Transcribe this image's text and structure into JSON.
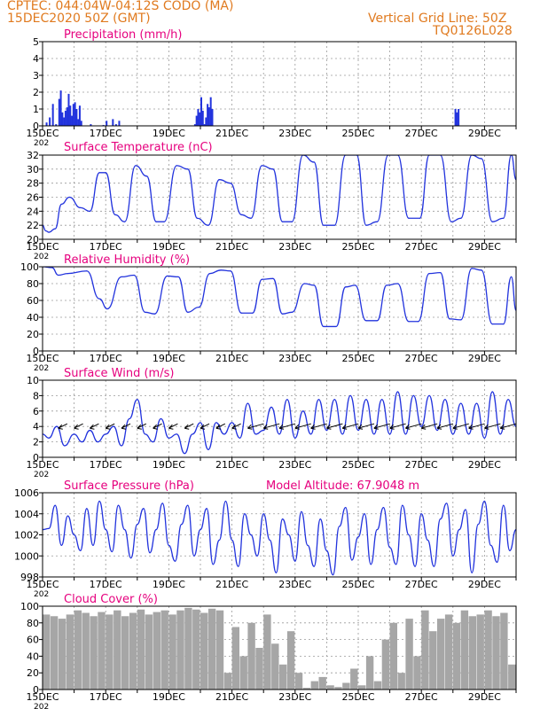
{
  "header": {
    "line1": "CPTEC:   044:04W-04:12S   CODO (MA)",
    "line2": "15DEC2020 50Z (GMT)",
    "right1": "Vertical Grid Line: 50Z",
    "right2": "TQ0126L028"
  },
  "colors": {
    "header": "#e07a1f",
    "title": "#e6007e",
    "series": "#2233dd",
    "cloud": "#a6a6a6",
    "grid": "#9a9a9a"
  },
  "x_axis": {
    "tick_labels": [
      "15DEC",
      "17DEC",
      "19DEC",
      "21DEC",
      "23DEC",
      "25DEC",
      "27DEC",
      "29DEC"
    ],
    "tick_days": [
      15,
      17,
      19,
      21,
      23,
      25,
      27,
      29
    ],
    "year_fragment": "202",
    "xlim": [
      15,
      30
    ]
  },
  "chart_data": [
    {
      "type": "bar",
      "title": "Precipitation (mm/h)",
      "ylim": [
        0,
        5
      ],
      "yticks": [
        "0",
        "1",
        "2",
        "3",
        "4",
        "5"
      ],
      "x": [
        15.1,
        15.2,
        15.3,
        15.4,
        15.5,
        15.55,
        15.6,
        15.65,
        15.7,
        15.75,
        15.8,
        15.85,
        15.9,
        15.95,
        16.0,
        16.05,
        16.1,
        16.15,
        16.2,
        16.5,
        16.9,
        17.0,
        17.2,
        17.3,
        17.4,
        19.8,
        19.85,
        19.9,
        19.95,
        20.0,
        20.05,
        20.1,
        20.15,
        20.2,
        20.25,
        20.3,
        20.35,
        28.05,
        28.1,
        28.15
      ],
      "values": [
        0.2,
        0.5,
        1.3,
        0.1,
        1.6,
        2.1,
        0.8,
        0.5,
        0.9,
        1.1,
        1.9,
        1.2,
        0.6,
        1.3,
        1.4,
        1.0,
        0.4,
        1.2,
        0.3,
        0.1,
        0.05,
        0.3,
        0.4,
        0.1,
        0.3,
        0.1,
        0.6,
        1.0,
        0.8,
        1.7,
        0.9,
        0.1,
        0.5,
        1.3,
        1.1,
        1.7,
        1.0,
        1.0,
        0.8,
        1.0
      ]
    },
    {
      "type": "line",
      "title": "Surface Temperature (nC)",
      "ylim": [
        20,
        32
      ],
      "yticks": [
        "20",
        "22",
        "24",
        "26",
        "28",
        "30",
        "32"
      ],
      "x": [
        15.0,
        15.1,
        15.2,
        15.4,
        15.6,
        15.85,
        16.2,
        16.5,
        16.8,
        17.0,
        17.3,
        17.6,
        17.95,
        18.3,
        18.6,
        18.85,
        19.25,
        19.6,
        19.9,
        20.25,
        20.6,
        20.95,
        21.3,
        21.6,
        21.95,
        22.3,
        22.6,
        22.9,
        23.25,
        23.6,
        23.9,
        24.25,
        24.6,
        24.95,
        25.25,
        25.6,
        25.95,
        26.25,
        26.6,
        26.95,
        27.25,
        27.6,
        27.95,
        28.25,
        28.6,
        28.9,
        29.25,
        29.6,
        29.85,
        30.0
      ],
      "values": [
        22,
        21.2,
        21,
        21.5,
        25,
        26,
        24.5,
        24,
        29.5,
        29.5,
        23.5,
        22.5,
        30.5,
        29,
        22.5,
        22.5,
        30.5,
        30,
        23,
        22,
        28.5,
        28,
        23.5,
        23,
        30.5,
        30,
        22.5,
        22.5,
        32,
        31,
        22,
        22,
        32,
        32,
        22,
        22.5,
        32,
        32,
        23,
        23,
        32,
        32,
        22.5,
        23,
        32,
        31.5,
        22.5,
        23,
        32,
        28.5
      ]
    },
    {
      "type": "line",
      "title": "Relative Humidity (%)",
      "ylim": [
        0,
        100
      ],
      "yticks": [
        "0",
        "20",
        "40",
        "60",
        "80",
        "100"
      ],
      "x": [
        15.0,
        15.3,
        15.5,
        15.8,
        16.4,
        16.8,
        17.05,
        17.5,
        17.9,
        18.25,
        18.55,
        18.95,
        19.3,
        19.6,
        19.95,
        20.3,
        20.65,
        20.95,
        21.3,
        21.65,
        21.95,
        22.3,
        22.6,
        22.9,
        23.3,
        23.6,
        23.9,
        24.3,
        24.6,
        24.9,
        25.25,
        25.6,
        25.9,
        26.25,
        26.6,
        26.9,
        27.25,
        27.6,
        27.9,
        28.25,
        28.6,
        28.9,
        29.25,
        29.6,
        29.85,
        30.0
      ],
      "values": [
        100,
        99,
        90,
        92,
        95,
        62,
        50,
        88,
        90,
        46,
        44,
        89,
        88,
        46,
        52,
        92,
        96,
        95,
        45,
        45,
        85,
        86,
        44,
        46,
        80,
        78,
        29,
        29,
        76,
        78,
        36,
        36,
        78,
        80,
        35,
        35,
        92,
        93,
        38,
        37,
        98,
        96,
        32,
        32,
        88,
        48
      ]
    },
    {
      "type": "line",
      "title": "Surface Wind (m/s)",
      "ylim": [
        0,
        10
      ],
      "yticks": [
        "0",
        "2",
        "4",
        "6",
        "8",
        "10"
      ],
      "x": [
        15.0,
        15.2,
        15.45,
        15.7,
        16.0,
        16.25,
        16.5,
        16.75,
        17.0,
        17.25,
        17.5,
        17.75,
        18.0,
        18.25,
        18.5,
        18.75,
        19.0,
        19.25,
        19.5,
        19.75,
        20.0,
        20.25,
        20.5,
        20.75,
        21.0,
        21.25,
        21.5,
        21.75,
        22.0,
        22.25,
        22.5,
        22.75,
        23.0,
        23.25,
        23.5,
        23.75,
        24.0,
        24.25,
        24.5,
        24.75,
        25.0,
        25.25,
        25.5,
        25.75,
        26.0,
        26.25,
        26.5,
        26.75,
        27.0,
        27.25,
        27.5,
        27.75,
        28.0,
        28.25,
        28.5,
        28.75,
        29.0,
        29.25,
        29.5,
        29.75,
        30.0
      ],
      "values": [
        3,
        2.5,
        4,
        1.5,
        3,
        2,
        3.5,
        2,
        3,
        4,
        1.5,
        5,
        7.5,
        3,
        2,
        5,
        2.5,
        3,
        0.5,
        3,
        4.5,
        1,
        4.5,
        3,
        4.5,
        2.5,
        7,
        3,
        3.5,
        6.5,
        3,
        7.5,
        2.5,
        6,
        3,
        7.5,
        3.5,
        7.5,
        3,
        8,
        3.5,
        7.5,
        3,
        7.5,
        3,
        8.5,
        3,
        8,
        4,
        8,
        3.5,
        7.5,
        3,
        7,
        3,
        7,
        2.5,
        8.5,
        3,
        7.5,
        4
      ]
    },
    {
      "type": "line",
      "title": "Surface Pressure (hPa)",
      "subtitle": "Model Altitude: 67.9048 m",
      "ylim": [
        998,
        1006
      ],
      "yticks": [
        "998",
        "1000",
        "1002",
        "1004",
        "1006"
      ],
      "x": [
        15.0,
        15.2,
        15.4,
        15.6,
        15.8,
        16.0,
        16.2,
        16.4,
        16.6,
        16.8,
        17.0,
        17.2,
        17.4,
        17.6,
        17.8,
        18.0,
        18.2,
        18.4,
        18.6,
        18.8,
        19.0,
        19.2,
        19.4,
        19.6,
        19.8,
        20.0,
        20.2,
        20.4,
        20.6,
        20.8,
        21.0,
        21.2,
        21.4,
        21.6,
        21.8,
        22.0,
        22.2,
        22.4,
        22.6,
        22.8,
        23.0,
        23.2,
        23.4,
        23.6,
        23.8,
        24.0,
        24.2,
        24.4,
        24.6,
        24.8,
        25.0,
        25.2,
        25.4,
        25.6,
        25.8,
        26.0,
        26.2,
        26.4,
        26.6,
        26.8,
        27.0,
        27.2,
        27.4,
        27.6,
        27.8,
        28.0,
        28.2,
        28.4,
        28.6,
        28.8,
        29.0,
        29.2,
        29.4,
        29.6,
        29.8,
        30.0
      ],
      "values": [
        1002.5,
        1002.6,
        1004.8,
        1001.0,
        1003.8,
        1002.0,
        1000.5,
        1004.5,
        1001.0,
        1005.2,
        1002.5,
        1000.4,
        1004.8,
        1002.5,
        999.8,
        1003.0,
        1004.5,
        1000.3,
        1002.5,
        1005.0,
        1001.0,
        999.5,
        1003.0,
        1004.8,
        1000.0,
        1002.5,
        1004.5,
        999.2,
        1001.5,
        1005.2,
        1001.5,
        999.0,
        1004.0,
        1002.0,
        1000.0,
        1004.0,
        1001.5,
        998.4,
        1003.5,
        1002.0,
        999.5,
        1004.2,
        1001.0,
        999.0,
        1003.5,
        1000.5,
        998.2,
        1002.8,
        1004.6,
        999.6,
        1001.8,
        1004.0,
        999.2,
        1002.5,
        1004.6,
        1000.8,
        999.2,
        1004.8,
        1002.0,
        999.0,
        1004.0,
        1001.5,
        999.0,
        1003.5,
        1005.0,
        1000.0,
        1002.5,
        1004.4,
        998.4,
        1003.0,
        1005.2,
        1001.0,
        999.4,
        1004.8,
        1000.5,
        1002.5
      ]
    },
    {
      "type": "bar",
      "title": "Cloud Cover (%)",
      "ylim": [
        0,
        100
      ],
      "yticks": [
        "0",
        "20",
        "40",
        "60",
        "80",
        "100"
      ],
      "x": [
        15.0,
        15.25,
        15.5,
        15.75,
        16.0,
        16.25,
        16.5,
        16.75,
        17.0,
        17.25,
        17.5,
        17.75,
        18.0,
        18.25,
        18.5,
        18.75,
        19.0,
        19.25,
        19.5,
        19.75,
        20.0,
        20.25,
        20.5,
        20.75,
        21.0,
        21.25,
        21.5,
        21.75,
        22.0,
        22.25,
        22.5,
        22.75,
        23.0,
        23.25,
        23.5,
        23.75,
        24.0,
        24.25,
        24.5,
        24.75,
        25.0,
        25.25,
        25.5,
        25.75,
        26.0,
        26.25,
        26.5,
        26.75,
        27.0,
        27.25,
        27.5,
        27.75,
        28.0,
        28.25,
        28.5,
        28.75,
        29.0,
        29.25,
        29.5,
        29.75
      ],
      "values": [
        90,
        88,
        85,
        90,
        95,
        92,
        88,
        93,
        90,
        95,
        88,
        92,
        96,
        90,
        93,
        95,
        90,
        95,
        98,
        96,
        92,
        97,
        95,
        20,
        75,
        40,
        80,
        50,
        90,
        55,
        30,
        70,
        20,
        2,
        10,
        15,
        5,
        3,
        8,
        25,
        5,
        40,
        10,
        60,
        80,
        20,
        85,
        40,
        95,
        70,
        85,
        90,
        80,
        95,
        88,
        90,
        95,
        88,
        92,
        30
      ]
    }
  ]
}
